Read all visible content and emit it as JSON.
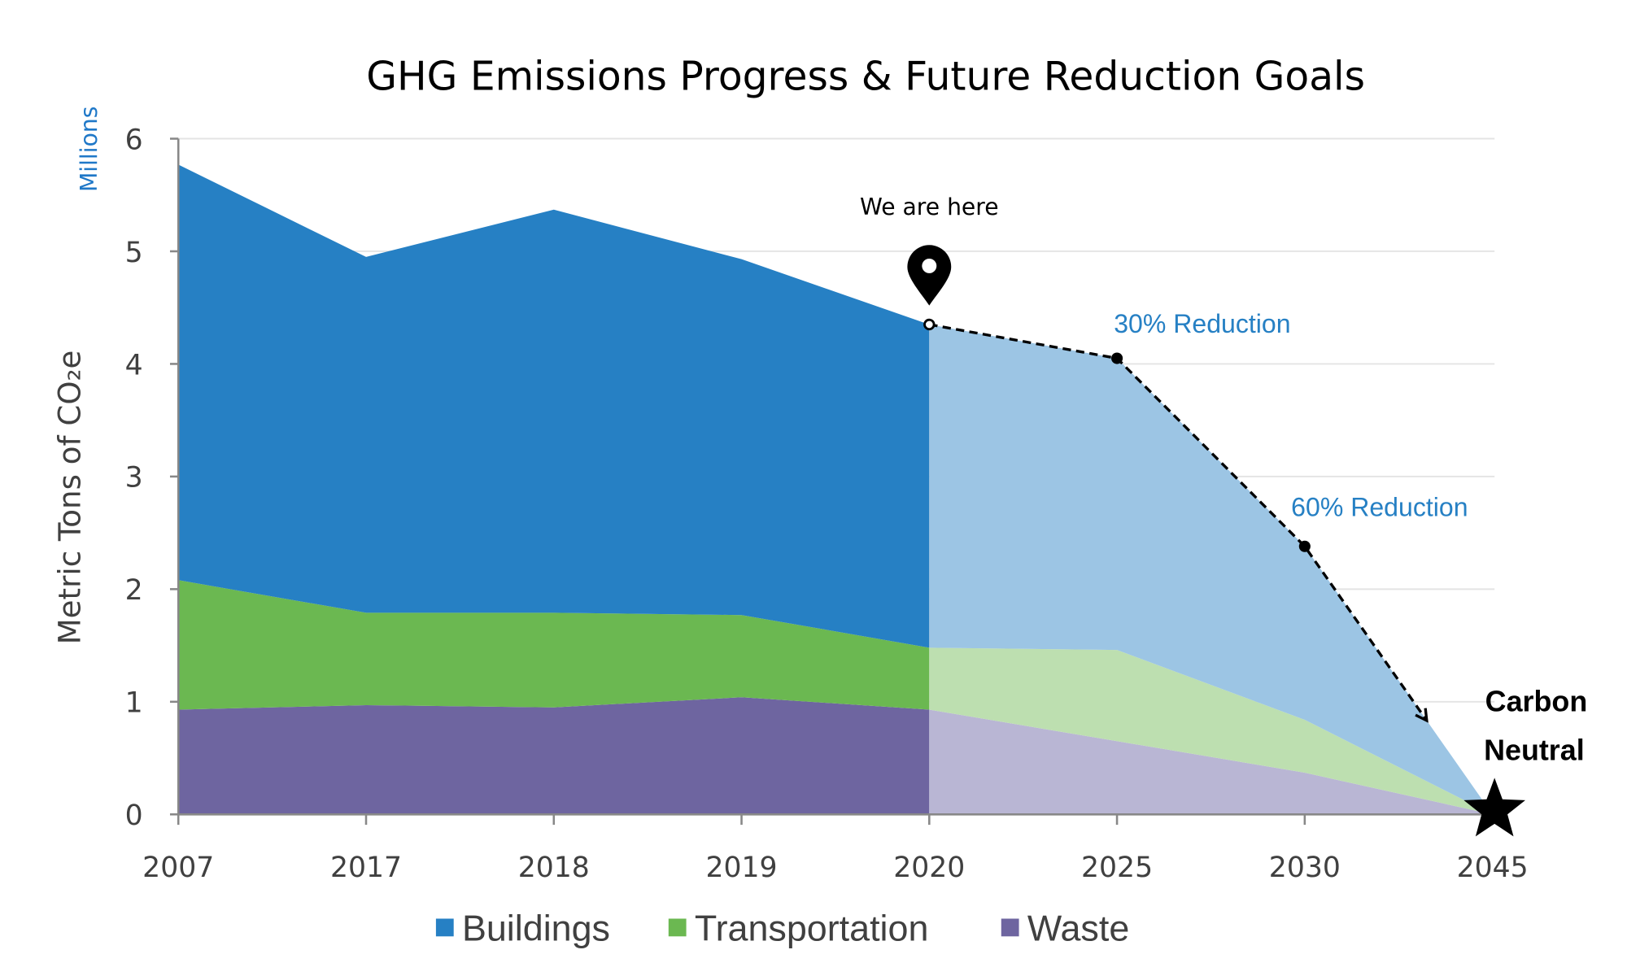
{
  "chart_data": {
    "type": "area",
    "stacked": true,
    "title": "GHG Emissions Progress & Future Reduction Goals",
    "ylabel": "Metric Tons of CO₂e",
    "yunits": "Millions",
    "xlabel": "",
    "categories": [
      "2007",
      "2017",
      "2018",
      "2019",
      "2020",
      "2025",
      "2030",
      "2045"
    ],
    "ylim": [
      0,
      6
    ],
    "yticks": [
      "0",
      "1",
      "2",
      "3",
      "4",
      "5",
      "6"
    ],
    "grid": true,
    "legend_position": "bottom",
    "projection_starts_at": "2020",
    "series": [
      {
        "name": "Waste",
        "values": [
          0.93,
          0.97,
          0.95,
          1.04,
          0.93,
          0.65,
          0.37,
          0
        ],
        "color": "#6E65A0",
        "projection_color": "#B9B6D4"
      },
      {
        "name": "Transportation",
        "values": [
          1.15,
          0.82,
          0.84,
          0.73,
          0.55,
          0.81,
          0.47,
          0
        ],
        "color": "#6BB851",
        "projection_color": "#BDDFB0"
      },
      {
        "name": "Buildings",
        "values": [
          3.69,
          3.16,
          3.58,
          3.16,
          2.87,
          2.59,
          1.54,
          0
        ],
        "color": "#2680C4",
        "projection_color": "#9CC5E4"
      }
    ],
    "legend": [
      "Buildings",
      "Transportation",
      "Waste"
    ],
    "goal_path": {
      "categories": [
        "2020",
        "2025",
        "2030"
      ],
      "values": [
        4.35,
        4.05,
        2.38
      ],
      "style": "dashed-arrow"
    },
    "annotations": {
      "current": "We are here",
      "goal_2025": "30% Reduction",
      "goal_2030": "60% Reduction",
      "final_line1": "Carbon",
      "final_line2": "Neutral"
    },
    "icons": {
      "current": "map-pin-icon",
      "final": "star-icon"
    }
  }
}
